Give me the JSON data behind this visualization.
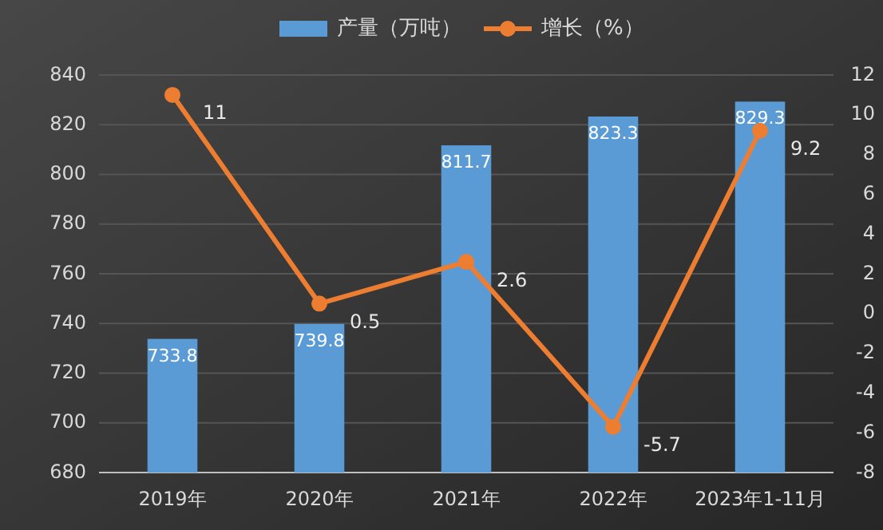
{
  "chart_data": {
    "type": "bar",
    "categories": [
      "2019年",
      "2020年",
      "2021年",
      "2022年",
      "2023年1-11月"
    ],
    "series": [
      {
        "name": "产量（万吨）",
        "color": "#5b9bd5",
        "values": [
          733.8,
          739.8,
          811.7,
          823.3,
          829.3
        ]
      },
      {
        "name": "增长（%）",
        "type": "line",
        "axis": "y2",
        "color": "#ed7d31",
        "marker": "circle",
        "values": [
          11,
          0.5,
          2.6,
          -5.7,
          9.2
        ]
      }
    ],
    "ylim": [
      680,
      840
    ],
    "yticks": [
      680,
      700,
      720,
      740,
      760,
      780,
      800,
      820,
      840
    ],
    "y2lim": [
      -8,
      12
    ],
    "y2ticks": [
      -8,
      -6,
      -4,
      -2,
      0,
      2,
      4,
      6,
      8,
      10,
      12
    ],
    "data_labels": true,
    "grid": "y",
    "legend": "top"
  }
}
